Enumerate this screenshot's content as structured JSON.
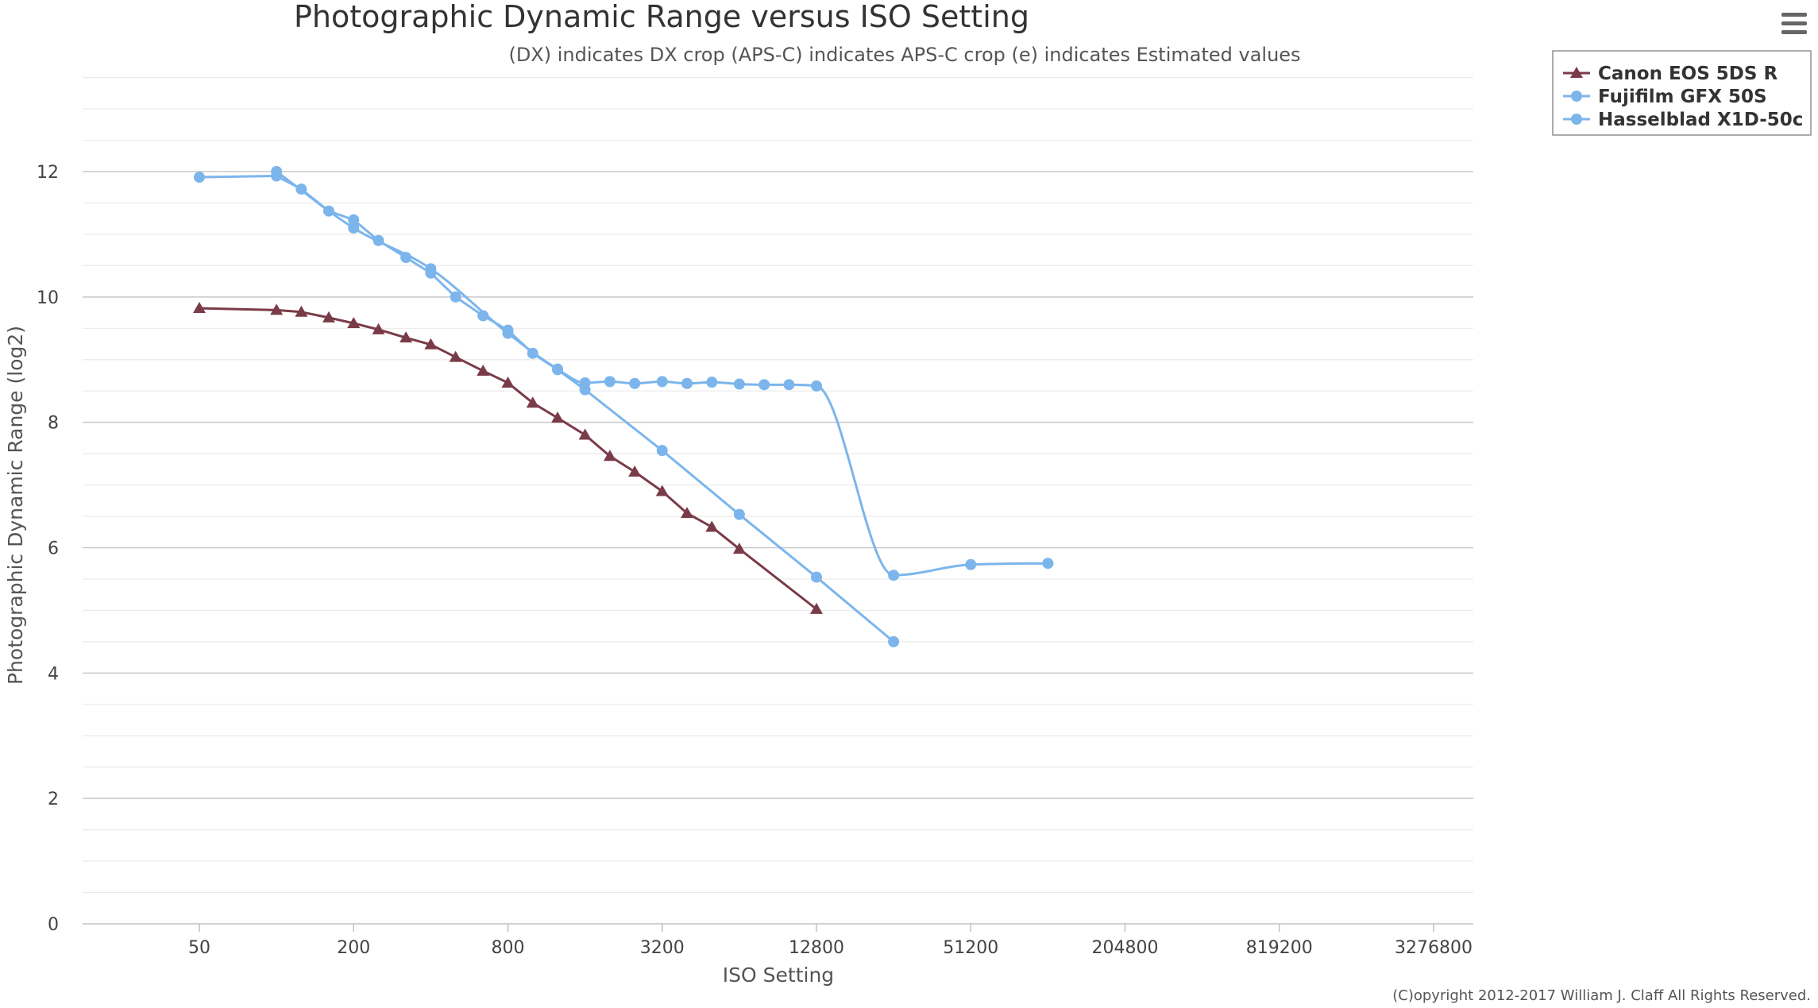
{
  "chart_data": {
    "type": "line",
    "title": "Photographic Dynamic Range versus ISO Setting",
    "subtitle": "(DX) indicates DX crop (APS-C) indicates APS-C crop (e) indicates Estimated values",
    "xlabel": "ISO Setting",
    "ylabel": "Photographic Dynamic Range (log2)",
    "x_scale": "log2",
    "x_ticks": [
      50,
      200,
      800,
      3200,
      12800,
      51200,
      204800,
      819200,
      3276800
    ],
    "x_tick_labels": [
      "50",
      "200",
      "800",
      "3200",
      "12800",
      "51200",
      "204800",
      "819200",
      "3276800"
    ],
    "xlim": [
      25,
      6553600
    ],
    "y_ticks": [
      0,
      2,
      4,
      6,
      8,
      10,
      12
    ],
    "y_tick_labels": [
      "0",
      "2",
      "4",
      "6",
      "8",
      "10",
      "12"
    ],
    "ylim": [
      0,
      13.5
    ],
    "grid": true,
    "legend": "top-right",
    "series": [
      {
        "name": "Canon EOS 5DS R",
        "color": "#7a3b48",
        "marker": "triangle",
        "smooth": false,
        "points": [
          [
            50,
            9.82
          ],
          [
            100,
            9.79
          ],
          [
            125,
            9.76
          ],
          [
            160,
            9.67
          ],
          [
            200,
            9.58
          ],
          [
            250,
            9.48
          ],
          [
            320,
            9.35
          ],
          [
            400,
            9.24
          ],
          [
            500,
            9.04
          ],
          [
            640,
            8.82
          ],
          [
            800,
            8.63
          ],
          [
            1000,
            8.31
          ],
          [
            1250,
            8.07
          ],
          [
            1600,
            7.8
          ],
          [
            2000,
            7.46
          ],
          [
            2500,
            7.21
          ],
          [
            3200,
            6.9
          ],
          [
            4000,
            6.55
          ],
          [
            5000,
            6.33
          ],
          [
            6400,
            5.98
          ],
          [
            12800,
            5.02
          ]
        ]
      },
      {
        "name": "Fujifilm GFX 50S",
        "color": "#7cb5ec",
        "marker": "circle",
        "smooth": false,
        "points": [
          [
            50,
            11.91
          ],
          [
            100,
            11.93
          ],
          [
            125,
            11.72
          ],
          [
            160,
            11.37
          ],
          [
            200,
            11.23
          ],
          [
            250,
            10.9
          ],
          [
            320,
            10.63
          ],
          [
            400,
            10.38
          ],
          [
            500,
            10.0
          ],
          [
            640,
            9.7
          ],
          [
            800,
            9.47
          ],
          [
            1000,
            9.1
          ],
          [
            1250,
            8.84
          ],
          [
            1600,
            8.52
          ],
          [
            3200,
            7.55
          ],
          [
            6400,
            6.53
          ],
          [
            12800,
            5.53
          ],
          [
            25600,
            4.5
          ]
        ]
      },
      {
        "name": "Hasselblad X1D-50c",
        "color": "#7cb5ec",
        "marker": "circle",
        "smooth": true,
        "points": [
          [
            100,
            12.0
          ],
          [
            200,
            11.1
          ],
          [
            400,
            10.45
          ],
          [
            800,
            9.42
          ],
          [
            1250,
            8.85
          ],
          [
            1600,
            8.63
          ],
          [
            2000,
            8.65
          ],
          [
            2500,
            8.62
          ],
          [
            3200,
            8.65
          ],
          [
            4000,
            8.62
          ],
          [
            5000,
            8.64
          ],
          [
            6400,
            8.61
          ],
          [
            8000,
            8.6
          ],
          [
            10000,
            8.6
          ],
          [
            12800,
            8.58
          ],
          [
            25600,
            5.56
          ],
          [
            51200,
            5.73
          ],
          [
            102400,
            5.75
          ]
        ]
      }
    ]
  },
  "credits": "(C)opyright 2012-2017 William J. Claff All Rights Reserved.",
  "menu_icon": "hamburger-menu-icon"
}
